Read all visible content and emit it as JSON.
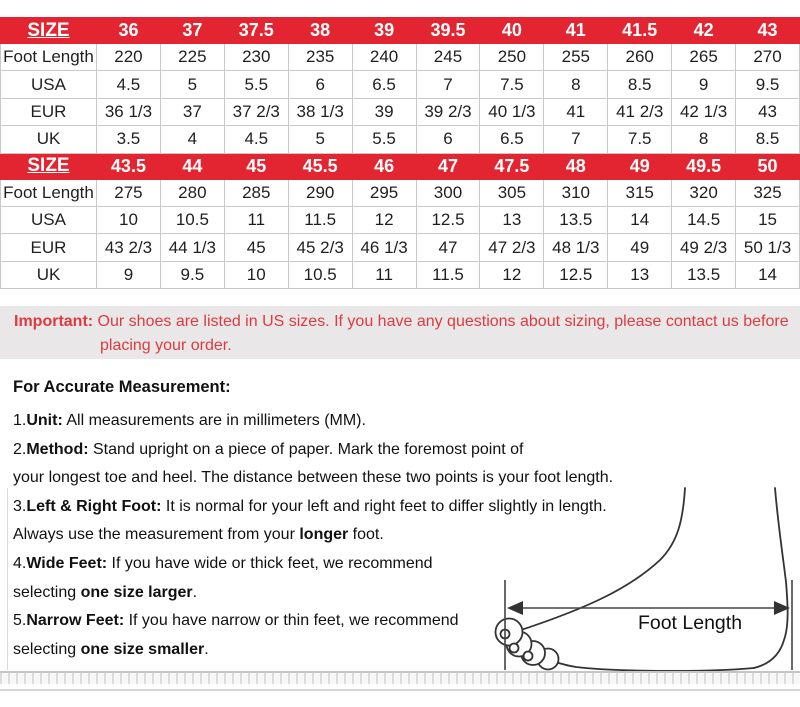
{
  "colors": {
    "header_red": "#e32431",
    "note_red": "#dd3b41",
    "note_bg": "#e9e7e7",
    "border": "#c9c9c9"
  },
  "size_chart": {
    "header_label": "SIZE",
    "row_labels": [
      "Foot Length",
      "USA",
      "EUR",
      "UK"
    ],
    "sections": [
      {
        "sizes": [
          "36",
          "37",
          "37.5",
          "38",
          "39",
          "39.5",
          "40",
          "41",
          "41.5",
          "42",
          "43"
        ],
        "rows": [
          [
            "220",
            "225",
            "230",
            "235",
            "240",
            "245",
            "250",
            "255",
            "260",
            "265",
            "270"
          ],
          [
            "4.5",
            "5",
            "5.5",
            "6",
            "6.5",
            "7",
            "7.5",
            "8",
            "8.5",
            "9",
            "9.5"
          ],
          [
            "36 1/3",
            "37",
            "37 2/3",
            "38 1/3",
            "39",
            "39 2/3",
            "40 1/3",
            "41",
            "41 2/3",
            "42 1/3",
            "43"
          ],
          [
            "3.5",
            "4",
            "4.5",
            "5",
            "5.5",
            "6",
            "6.5",
            "7",
            "7.5",
            "8",
            "8.5"
          ]
        ]
      },
      {
        "sizes": [
          "43.5",
          "44",
          "45",
          "45.5",
          "46",
          "47",
          "47.5",
          "48",
          "49",
          "49.5",
          "50"
        ],
        "rows": [
          [
            "275",
            "280",
            "285",
            "290",
            "295",
            "300",
            "305",
            "310",
            "315",
            "320",
            "325"
          ],
          [
            "10",
            "10.5",
            "11",
            "11.5",
            "12",
            "12.5",
            "13",
            "13.5",
            "14",
            "14.5",
            "15"
          ],
          [
            "43 2/3",
            "44 1/3",
            "45",
            "45 2/3",
            "46 1/3",
            "47",
            "47 2/3",
            "48 1/3",
            "49",
            "49 2/3",
            "50 1/3"
          ],
          [
            "9",
            "9.5",
            "10",
            "10.5",
            "11",
            "11.5",
            "12",
            "12.5",
            "13",
            "13.5",
            "14"
          ]
        ]
      }
    ]
  },
  "important_note": {
    "label": "Important:",
    "text": " Our shoes are listed in US sizes. If you have any questions about sizing, please contact us before placing your order."
  },
  "measurement": {
    "heading": "For Accurate Measurement:",
    "lines": [
      {
        "segments": [
          {
            "text": "1.",
            "bold": false
          },
          {
            "text": "Unit:",
            "bold": true
          },
          {
            "text": " All measurements are in millimeters (MM).",
            "bold": false
          }
        ]
      },
      {
        "segments": [
          {
            "text": "2.",
            "bold": false
          },
          {
            "text": "Method:",
            "bold": true
          },
          {
            "text": " Stand upright on a piece of paper. Mark the foremost point of",
            "bold": false
          }
        ]
      },
      {
        "segments": [
          {
            "text": "your longest toe and heel. The distance between these two points is your foot length.",
            "bold": false
          }
        ]
      },
      {
        "segments": [
          {
            "text": "3.",
            "bold": false
          },
          {
            "text": "Left & Right Foot:",
            "bold": true
          },
          {
            "text": " It is normal for your left and right feet to differ slightly in length.",
            "bold": false
          }
        ]
      },
      {
        "segments": [
          {
            "text": "Always use the measurement from your ",
            "bold": false
          },
          {
            "text": "longer",
            "bold": true
          },
          {
            "text": " foot.",
            "bold": false
          }
        ]
      },
      {
        "segments": [
          {
            "text": "4.",
            "bold": false
          },
          {
            "text": "Wide Feet:",
            "bold": true
          },
          {
            "text": " If you have wide or thick feet, we recommend",
            "bold": false
          }
        ]
      },
      {
        "segments": [
          {
            "text": "selecting ",
            "bold": false
          },
          {
            "text": "one size larger",
            "bold": true
          },
          {
            "text": ".",
            "bold": false
          }
        ]
      },
      {
        "segments": [
          {
            "text": "5.",
            "bold": false
          },
          {
            "text": "Narrow Feet:",
            "bold": true
          },
          {
            "text": " If you have narrow or thin feet, we recommend",
            "bold": false
          }
        ]
      },
      {
        "segments": [
          {
            "text": "selecting ",
            "bold": false
          },
          {
            "text": "one size smaller",
            "bold": true
          },
          {
            "text": ".",
            "bold": false
          }
        ]
      }
    ]
  },
  "foot_diagram": {
    "label": "Foot Length"
  }
}
